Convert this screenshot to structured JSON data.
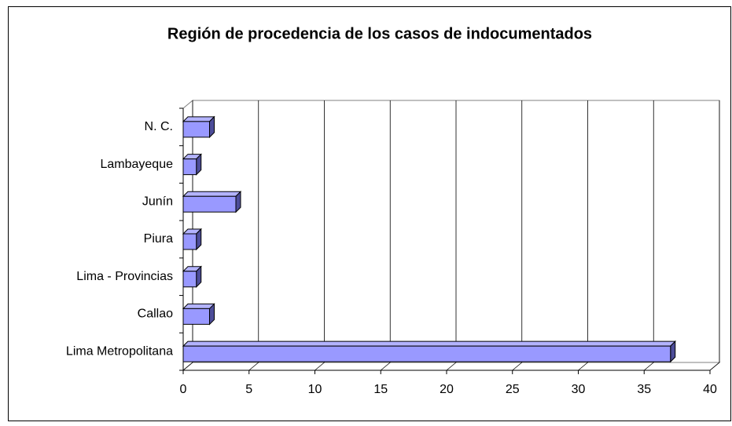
{
  "chart_data": {
    "type": "bar3d_horizontal",
    "title": "Región de procedencia de los casos de indocumentados",
    "categories": [
      "Lima Metropolitana",
      "Callao",
      "Lima - Provincias",
      "Piura",
      "Junín",
      "Lambayeque",
      "N. C."
    ],
    "values": [
      37,
      2,
      1,
      1,
      4,
      1,
      2
    ],
    "color": "#9999ff",
    "xlim": [
      0,
      40
    ],
    "xticks": [
      0,
      5,
      10,
      15,
      20,
      25,
      30,
      35,
      40
    ],
    "grid": true
  }
}
